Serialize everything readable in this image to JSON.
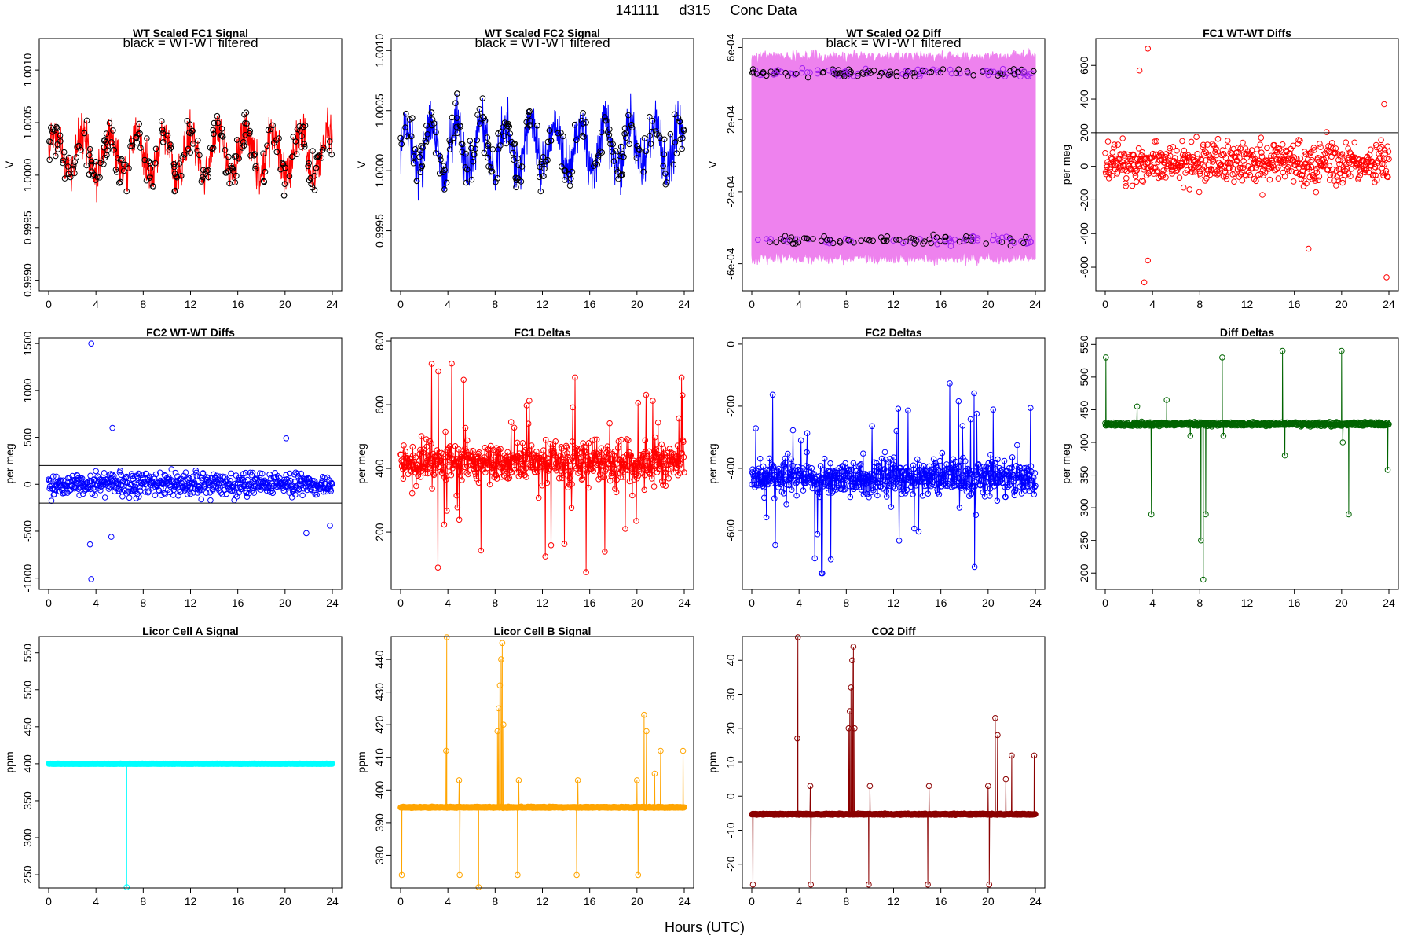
{
  "figure": {
    "title_parts": [
      "141111",
      "d315",
      "Conc Data"
    ],
    "xlabel": "Hours (UTC)"
  },
  "chart_data": [
    {
      "id": "p1",
      "type": "line",
      "title": "WT Scaled FC1 Signal",
      "annotation": "black = WT-WT filtered",
      "ylabel": "V",
      "color": "#ff0000",
      "marker_color": "#000000",
      "x_range": [
        0,
        24
      ],
      "xticks": [
        "0",
        "4",
        "8",
        "12",
        "16",
        "20",
        "24"
      ],
      "ylim": [
        0.9989,
        1.0013
      ],
      "yticks": [
        {
          "v": 0.999,
          "t": "0.9990"
        },
        {
          "v": 0.9995,
          "t": "0.9995"
        },
        {
          "v": 1.0,
          "t": "1.0000"
        },
        {
          "v": 1.0005,
          "t": "1.0005"
        },
        {
          "v": 1.001,
          "t": "1.0010"
        }
      ],
      "shape": {
        "kind": "noise",
        "base": 1.0002,
        "amp": 0.0002,
        "noise": 0.00035,
        "period": 2.3,
        "seed": 11,
        "n": 900,
        "min": 0.999,
        "max": 1.0012
      },
      "markers": {
        "n": 260,
        "seed": 5
      },
      "hlines": []
    },
    {
      "id": "p2",
      "type": "line",
      "title": "WT Scaled FC2 Signal",
      "annotation": "black = WT-WT filtered",
      "ylabel": "V",
      "color": "#0000ff",
      "marker_color": "#000000",
      "x_range": [
        0,
        24
      ],
      "xticks": [
        "0",
        "4",
        "8",
        "12",
        "16",
        "20",
        "24"
      ],
      "ylim": [
        0.999,
        1.0011
      ],
      "yticks": [
        {
          "v": 0.9995,
          "t": "0.9995"
        },
        {
          "v": 1.0,
          "t": "1.0000"
        },
        {
          "v": 1.0005,
          "t": "1.0005"
        },
        {
          "v": 1.001,
          "t": "1.0010"
        }
      ],
      "shape": {
        "kind": "noise",
        "base": 1.0002,
        "amp": 0.0002,
        "noise": 0.00035,
        "period": 2.1,
        "seed": 23,
        "n": 900,
        "min": 0.999,
        "max": 1.0011
      },
      "markers": {
        "n": 260,
        "seed": 9
      },
      "hlines": []
    },
    {
      "id": "p3",
      "type": "band",
      "title": "WT Scaled O2 Diff",
      "annotation": "black = WT-WT filtered",
      "ylabel": "V",
      "color": "#ee82ee",
      "marker_color": "#000000",
      "marker_color2": "#a020f0",
      "x_range": [
        0,
        24
      ],
      "xticks": [
        "0",
        "4",
        "8",
        "12",
        "16",
        "20",
        "24"
      ],
      "ylim": [
        -0.00075,
        0.00065
      ],
      "yticks": [
        {
          "v": -0.0006,
          "t": "-6e-04"
        },
        {
          "v": -0.0002,
          "t": "-2e-04"
        },
        {
          "v": 0.0002,
          "t": "2e-04"
        },
        {
          "v": 0.0006,
          "t": "6e-04"
        }
      ],
      "shape": {
        "kind": "band",
        "upper": 0.00055,
        "lower": -0.00057,
        "upper_mean": 0.00046,
        "lower_mean": -0.00047,
        "seed": 31,
        "n": 400
      },
      "hlines": []
    },
    {
      "id": "p4",
      "type": "scatter",
      "title": "FC1 WT-WT Diffs",
      "annotation": "",
      "ylabel": "per meg",
      "color": "#ff0000",
      "x_range": [
        0,
        24
      ],
      "xticks": [
        "0",
        "4",
        "8",
        "12",
        "16",
        "20",
        "24"
      ],
      "ylim": [
        -740,
        760
      ],
      "yticks": [
        {
          "v": -600,
          "t": "-600"
        },
        {
          "v": -400,
          "t": "-400"
        },
        {
          "v": -200,
          "t": "-200"
        },
        {
          "v": 0,
          "t": "0"
        },
        {
          "v": 200,
          "t": "200"
        },
        {
          "v": 400,
          "t": "400"
        },
        {
          "v": 600,
          "t": "600"
        }
      ],
      "shape": {
        "kind": "scatter",
        "base": 20,
        "spread": 150,
        "seed": 41,
        "n": 620,
        "outliers": [
          [
            3.6,
            700
          ],
          [
            2.9,
            570
          ],
          [
            3.3,
            -690
          ],
          [
            3.6,
            -560
          ],
          [
            23.8,
            -660
          ],
          [
            17.2,
            -490
          ],
          [
            23.6,
            370
          ]
        ]
      },
      "hlines": [
        200,
        -200
      ]
    },
    {
      "id": "p5",
      "type": "scatter",
      "title": "FC2 WT-WT Diffs",
      "annotation": "",
      "ylabel": "per meg",
      "color": "#0000ff",
      "x_range": [
        0,
        24
      ],
      "xticks": [
        "0",
        "4",
        "8",
        "12",
        "16",
        "20",
        "24"
      ],
      "ylim": [
        -1120,
        1560
      ],
      "yticks": [
        {
          "v": -1000,
          "t": "-1000"
        },
        {
          "v": -500,
          "t": "-500"
        },
        {
          "v": 0,
          "t": "0"
        },
        {
          "v": 500,
          "t": "500"
        },
        {
          "v": 1000,
          "t": "1000"
        },
        {
          "v": 1500,
          "t": "1500"
        }
      ],
      "shape": {
        "kind": "scatter",
        "base": 0,
        "spread": 150,
        "seed": 53,
        "n": 620,
        "outliers": [
          [
            3.6,
            1500
          ],
          [
            3.6,
            -1010
          ],
          [
            3.5,
            -640
          ],
          [
            5.4,
            600
          ],
          [
            5.3,
            -560
          ],
          [
            20.1,
            490
          ],
          [
            21.8,
            -520
          ],
          [
            23.8,
            -440
          ]
        ]
      },
      "hlines": [
        200,
        -200
      ]
    },
    {
      "id": "p6",
      "type": "linepts",
      "title": "FC1 Deltas",
      "annotation": "",
      "ylabel": "per meg",
      "color": "#ff0000",
      "x_range": [
        0,
        24
      ],
      "xticks": [
        "0",
        "4",
        "8",
        "12",
        "16",
        "20",
        "24"
      ],
      "ylim": [
        20,
        810
      ],
      "yticks": [
        {
          "v": 200,
          "t": "200"
        },
        {
          "v": 400,
          "t": "400"
        },
        {
          "v": 600,
          "t": "600"
        },
        {
          "v": 800,
          "t": "800"
        }
      ],
      "shape": {
        "kind": "deltas",
        "base": 420,
        "spread": 75,
        "spike": 180,
        "seed": 61,
        "n": 640,
        "min": 40,
        "max": 795
      },
      "hlines": []
    },
    {
      "id": "p7",
      "type": "linepts",
      "title": "FC2 Deltas",
      "annotation": "",
      "ylabel": "per meg",
      "color": "#0000ff",
      "x_range": [
        0,
        24
      ],
      "xticks": [
        "0",
        "4",
        "8",
        "12",
        "16",
        "20",
        "24"
      ],
      "ylim": [
        -790,
        20
      ],
      "yticks": [
        {
          "v": -600,
          "t": "-600"
        },
        {
          "v": -400,
          "t": "-400"
        },
        {
          "v": -200,
          "t": "-200"
        },
        {
          "v": 0,
          "t": "0"
        }
      ],
      "shape": {
        "kind": "deltas",
        "base": -430,
        "spread": 70,
        "spike": 170,
        "seed": 73,
        "n": 640,
        "min": -760,
        "max": 10
      },
      "hlines": []
    },
    {
      "id": "p8",
      "type": "linepts",
      "title": "Diff Deltas",
      "annotation": "",
      "ylabel": "per meg",
      "color": "#006400",
      "x_range": [
        0,
        24
      ],
      "xticks": [
        "0",
        "4",
        "8",
        "12",
        "16",
        "20",
        "24"
      ],
      "ylim": [
        175,
        560
      ],
      "yticks": [
        {
          "v": 200,
          "t": "200"
        },
        {
          "v": 250,
          "t": "250"
        },
        {
          "v": 300,
          "t": "300"
        },
        {
          "v": 350,
          "t": "350"
        },
        {
          "v": 400,
          "t": "400"
        },
        {
          "v": 450,
          "t": "450"
        },
        {
          "v": 500,
          "t": "500"
        },
        {
          "v": 550,
          "t": "550"
        }
      ],
      "shape": {
        "kind": "steady",
        "base": 428,
        "spread": 5,
        "seed": 83,
        "n": 640,
        "spikes": [
          [
            0.05,
            530
          ],
          [
            2.7,
            455
          ],
          [
            3.9,
            290
          ],
          [
            5.2,
            465
          ],
          [
            7.2,
            410
          ],
          [
            8.1,
            250
          ],
          [
            8.3,
            190
          ],
          [
            8.5,
            290
          ],
          [
            9.9,
            530
          ],
          [
            10.0,
            410
          ],
          [
            15.0,
            540
          ],
          [
            15.2,
            380
          ],
          [
            20.0,
            540
          ],
          [
            20.1,
            400
          ],
          [
            20.6,
            290
          ],
          [
            23.9,
            358
          ]
        ]
      },
      "hlines": []
    },
    {
      "id": "p9",
      "type": "linepts",
      "title": "Licor Cell A Signal",
      "annotation": "",
      "ylabel": "ppm",
      "color": "#00ffff",
      "x_range": [
        0,
        24
      ],
      "xticks": [
        "0",
        "4",
        "8",
        "12",
        "16",
        "20",
        "24"
      ],
      "ylim": [
        232,
        572
      ],
      "yticks": [
        {
          "v": 250,
          "t": "250"
        },
        {
          "v": 300,
          "t": "300"
        },
        {
          "v": 350,
          "t": "350"
        },
        {
          "v": 400,
          "t": "400"
        },
        {
          "v": 450,
          "t": "450"
        },
        {
          "v": 500,
          "t": "500"
        },
        {
          "v": 550,
          "t": "550"
        }
      ],
      "shape": {
        "kind": "flat",
        "base": 400,
        "spread": 0.4,
        "seed": 91,
        "n": 640,
        "drop": [
          6.6,
          230
        ]
      },
      "hlines": []
    },
    {
      "id": "p10",
      "type": "linepts",
      "title": "Licor Cell B Signal",
      "annotation": "",
      "ylabel": "ppm",
      "color": "#ffa500",
      "x_range": [
        0,
        24
      ],
      "xticks": [
        "0",
        "4",
        "8",
        "12",
        "16",
        "20",
        "24"
      ],
      "ylim": [
        370,
        447
      ],
      "yticks": [
        {
          "v": 380,
          "t": "380"
        },
        {
          "v": 390,
          "t": "390"
        },
        {
          "v": 400,
          "t": "400"
        },
        {
          "v": 410,
          "t": "410"
        },
        {
          "v": 420,
          "t": "420"
        },
        {
          "v": 430,
          "t": "430"
        },
        {
          "v": 440,
          "t": "440"
        }
      ],
      "shape": {
        "kind": "co2",
        "base": 394.7,
        "spread": 0.3,
        "seed": 101,
        "n": 640,
        "low": 374,
        "high": 403,
        "spikes": [
          [
            3.9,
            447
          ],
          [
            3.85,
            412
          ],
          [
            6.6,
            370
          ],
          [
            8.2,
            418
          ],
          [
            8.3,
            425
          ],
          [
            8.4,
            432
          ],
          [
            8.5,
            440
          ],
          [
            8.6,
            445
          ],
          [
            8.7,
            420
          ],
          [
            20.6,
            423
          ],
          [
            20.8,
            418
          ],
          [
            21.5,
            405
          ],
          [
            22.0,
            412
          ],
          [
            23.9,
            412
          ]
        ],
        "steps": [
          [
            0.1,
            374
          ],
          [
            4.95,
            403
          ],
          [
            5.0,
            374
          ],
          [
            9.9,
            374
          ],
          [
            10.0,
            403
          ],
          [
            14.9,
            374
          ],
          [
            15.0,
            403
          ],
          [
            20.0,
            403
          ],
          [
            20.1,
            374
          ]
        ]
      },
      "hlines": []
    },
    {
      "id": "p11",
      "type": "linepts",
      "title": "CO2 Diff",
      "annotation": "",
      "ylabel": "ppm",
      "color": "#8b0000",
      "x_range": [
        0,
        24
      ],
      "xticks": [
        "0",
        "4",
        "8",
        "12",
        "16",
        "20",
        "24"
      ],
      "ylim": [
        -27,
        47
      ],
      "yticks": [
        {
          "v": -20,
          "t": "-20"
        },
        {
          "v": -10,
          "t": "-10"
        },
        {
          "v": 0,
          "t": "0"
        },
        {
          "v": 10,
          "t": "10"
        },
        {
          "v": 20,
          "t": "20"
        },
        {
          "v": 30,
          "t": "30"
        },
        {
          "v": 40,
          "t": "40"
        }
      ],
      "shape": {
        "kind": "co2",
        "base": -5.3,
        "spread": 0.3,
        "seed": 113,
        "n": 640,
        "low": -26,
        "high": 3.2,
        "spikes": [
          [
            3.9,
            47
          ],
          [
            3.85,
            17
          ],
          [
            8.2,
            20
          ],
          [
            8.3,
            25
          ],
          [
            8.4,
            32
          ],
          [
            8.5,
            40
          ],
          [
            8.6,
            44
          ],
          [
            8.7,
            20
          ],
          [
            20.6,
            23
          ],
          [
            20.8,
            18
          ],
          [
            21.5,
            5
          ],
          [
            22.0,
            12
          ],
          [
            23.9,
            12
          ]
        ],
        "steps": [
          [
            0.1,
            -26
          ],
          [
            4.95,
            3
          ],
          [
            5.0,
            -26
          ],
          [
            9.9,
            -26
          ],
          [
            10.0,
            3
          ],
          [
            14.9,
            -26
          ],
          [
            15.0,
            3
          ],
          [
            20.0,
            3
          ],
          [
            20.1,
            -26
          ]
        ]
      },
      "hlines": []
    }
  ]
}
